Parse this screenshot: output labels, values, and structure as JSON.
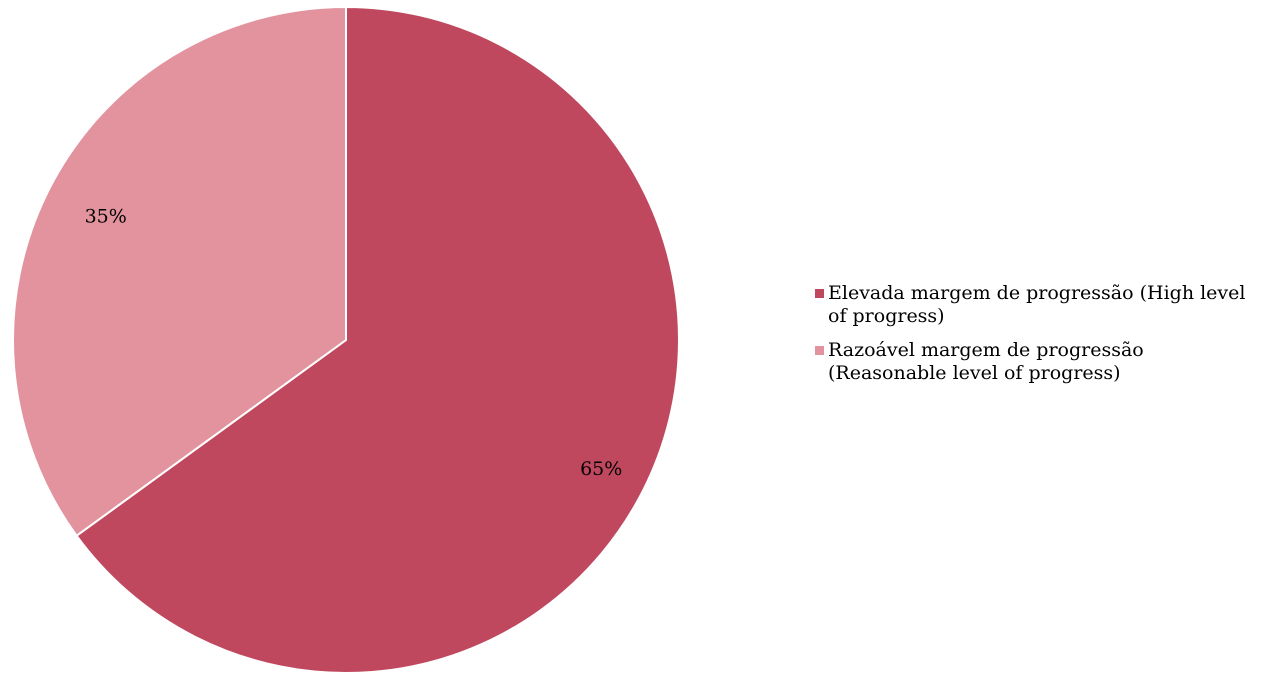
{
  "chart_data": {
    "type": "pie",
    "slices": [
      {
        "name": "Elevada margem de progressão (High level of progress)",
        "value": 65,
        "label": "65%",
        "color": "#C0485E"
      },
      {
        "name": "Razoável margem de progressão (Reasonable level of progress)",
        "value": 35,
        "label": "35%",
        "color": "#E2939E"
      }
    ],
    "start": "12 o'clock",
    "direction": "clockwise",
    "legend_position": "right",
    "title": ""
  }
}
